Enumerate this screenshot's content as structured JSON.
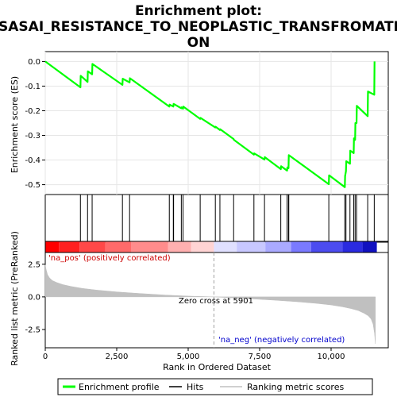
{
  "chart_data": {
    "type": "line",
    "title_lines": [
      "Enrichment plot:",
      "SASAI_RESISTANCE_TO_NEOPLASTIC_TRANSFROMATI",
      "ON"
    ],
    "xlabel": "Rank in Ordered Dataset",
    "xlim": [
      0,
      12000
    ],
    "x_ticks": [
      0,
      2500,
      5000,
      7500,
      10000
    ],
    "x_tick_labels": [
      "0",
      "2,500",
      "5,000",
      "7,500",
      "10,000"
    ],
    "es_panel": {
      "ylabel": "Enrichment score (ES)",
      "ylim": [
        -0.54,
        0.04
      ],
      "y_ticks": [
        0.0,
        -0.1,
        -0.2,
        -0.3,
        -0.4,
        -0.5
      ],
      "y_tick_labels": [
        "0.0",
        "-0.1",
        "-0.2",
        "-0.3",
        "-0.4",
        "-0.5"
      ],
      "series": [
        {
          "name": "Enrichment profile",
          "color": "#00ff00",
          "x": [
            0,
            1230,
            1240,
            1480,
            1490,
            1640,
            1650,
            2700,
            2710,
            2950,
            2960,
            4340,
            4350,
            4480,
            4490,
            4760,
            4770,
            4820,
            4830,
            5420,
            5430,
            5950,
            5960,
            6110,
            6120,
            6590,
            6600,
            7300,
            7310,
            7670,
            7680,
            8240,
            8250,
            8460,
            8470,
            8510,
            8520,
            9920,
            9930,
            10480,
            10490,
            10520,
            10530,
            10660,
            10670,
            10790,
            10800,
            10840,
            10850,
            10890,
            10900,
            11280,
            11290,
            11510,
            11520
          ],
          "y": [
            0.0,
            -0.105,
            -0.058,
            -0.083,
            -0.04,
            -0.052,
            -0.01,
            -0.095,
            -0.07,
            -0.085,
            -0.068,
            -0.183,
            -0.175,
            -0.183,
            -0.172,
            -0.19,
            -0.186,
            -0.192,
            -0.183,
            -0.233,
            -0.229,
            -0.268,
            -0.265,
            -0.278,
            -0.275,
            -0.315,
            -0.318,
            -0.378,
            -0.373,
            -0.398,
            -0.388,
            -0.437,
            -0.425,
            -0.443,
            -0.43,
            -0.433,
            -0.38,
            -0.498,
            -0.462,
            -0.51,
            -0.465,
            -0.445,
            -0.405,
            -0.415,
            -0.362,
            -0.372,
            -0.312,
            -0.318,
            -0.25,
            -0.25,
            -0.18,
            -0.222,
            -0.122,
            -0.135,
            0.0
          ]
        }
      ]
    },
    "hits": [
      1230,
      1480,
      1640,
      2700,
      2950,
      4340,
      4480,
      4490,
      4760,
      4820,
      5420,
      5950,
      6110,
      6590,
      7300,
      7670,
      8240,
      8460,
      8510,
      8520,
      9920,
      10480,
      10520,
      10660,
      10790,
      10840,
      10890,
      11280,
      11510
    ],
    "hits_color": "#000000",
    "heatmap": {
      "segments": [
        {
          "from": 0,
          "to": 480,
          "color": "#ff0000"
        },
        {
          "from": 480,
          "to": 1200,
          "color": "#ff2020"
        },
        {
          "from": 1200,
          "to": 2100,
          "color": "#ff4848"
        },
        {
          "from": 2100,
          "to": 3000,
          "color": "#ff6a6a"
        },
        {
          "from": 3000,
          "to": 4300,
          "color": "#ff8c8c"
        },
        {
          "from": 4300,
          "to": 5100,
          "color": "#ffb0b0"
        },
        {
          "from": 5100,
          "to": 5901,
          "color": "#ffd4d4"
        },
        {
          "from": 5901,
          "to": 6700,
          "color": "#e0e0ff"
        },
        {
          "from": 6700,
          "to": 7700,
          "color": "#c8c8ff"
        },
        {
          "from": 7700,
          "to": 8600,
          "color": "#aaaaff"
        },
        {
          "from": 8600,
          "to": 9300,
          "color": "#7a7aff"
        },
        {
          "from": 9300,
          "to": 10400,
          "color": "#4c4cf0"
        },
        {
          "from": 10400,
          "to": 11100,
          "color": "#2a2ae0"
        },
        {
          "from": 11100,
          "to": 11600,
          "color": "#1010c0"
        }
      ]
    },
    "metric_panel": {
      "ylabel": "Ranked list metric (PreRanked)",
      "ylim": [
        -3.9,
        3.4
      ],
      "y_ticks": [
        2.5,
        0.0,
        -2.5
      ],
      "y_tick_labels": [
        "2.5",
        "0.0",
        "-2.5"
      ],
      "fill_color": "#c0c0c0",
      "x": [
        0,
        30,
        80,
        150,
        250,
        400,
        600,
        900,
        1300,
        1800,
        2500,
        3300,
        4200,
        5000,
        5901,
        6500,
        7200,
        8000,
        8800,
        9500,
        10000,
        10400,
        10700,
        10950,
        11150,
        11300,
        11400,
        11470,
        11520,
        11550
      ],
      "y": [
        2.45,
        2.1,
        1.7,
        1.45,
        1.25,
        1.1,
        0.95,
        0.8,
        0.65,
        0.52,
        0.38,
        0.26,
        0.14,
        0.06,
        0.0,
        -0.07,
        -0.15,
        -0.25,
        -0.37,
        -0.5,
        -0.62,
        -0.76,
        -0.9,
        -1.05,
        -1.25,
        -1.45,
        -1.7,
        -2.1,
        -2.8,
        -3.6
      ]
    },
    "annotations": {
      "pos_label": "'na_pos' (positively correlated)",
      "pos_color": "#cc0000",
      "neg_label": "'na_neg' (negatively correlated)",
      "neg_color": "#0000cc",
      "zero_cross_label": "Zero cross at 5901",
      "zero_cross_x": 5901
    },
    "legend": {
      "placement": "bottom",
      "entries": [
        {
          "label": "Enrichment profile",
          "color": "#00ff00"
        },
        {
          "label": "Hits",
          "color": "#000000"
        },
        {
          "label": "Ranking metric scores",
          "color": "#c0c0c0"
        }
      ]
    }
  }
}
